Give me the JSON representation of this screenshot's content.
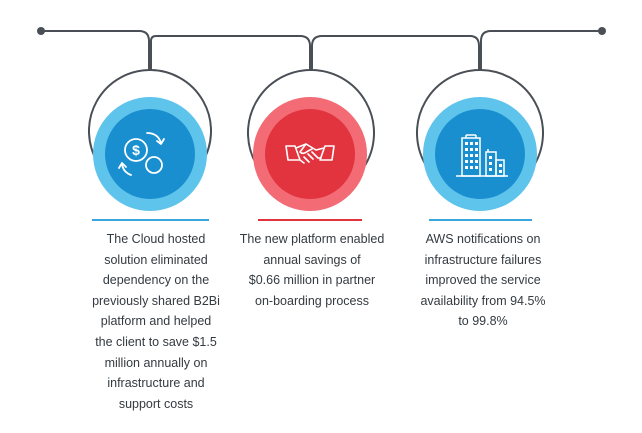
{
  "colors": {
    "line": "#4a4f55",
    "blue_light": "#5fc4ec",
    "blue_dark": "#1a8fd0",
    "red_light": "#f36b74",
    "red_dark": "#e2343f",
    "underline_blue": "#3aa6dd",
    "underline_red": "#e2343f",
    "text": "#333a40"
  },
  "items": [
    {
      "icon": "money-exchange-icon",
      "accent": "blue",
      "text": "The Cloud hosted\nsolution eliminated\ndependency on the\npreviously shared B2Bi\nplatform and helped\nthe client to save $1.5\nmillion annually on\ninfrastructure and\nsupport costs"
    },
    {
      "icon": "handshake-icon",
      "accent": "red",
      "text": "The new platform enabled\nannual savings of\n$0.66 million in partner\non-boarding process"
    },
    {
      "icon": "city-buildings-icon",
      "accent": "blue",
      "text": "AWS notifications on\ninfrastructure failures\nimproved the service\navailability from 94.5%\nto 99.8%"
    }
  ]
}
